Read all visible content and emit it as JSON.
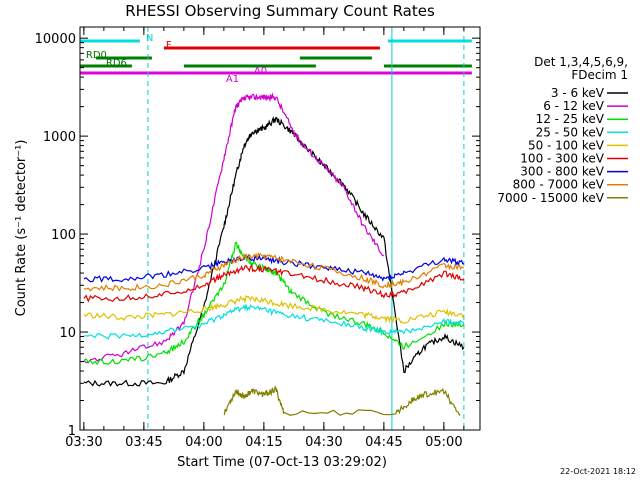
{
  "chart_data": {
    "type": "line",
    "title": "RHESSI Observing Summary Count Rates",
    "xlabel": "Start Time (07-Oct-13 03:29:02)",
    "ylabel": "Count Rate (s⁻¹ detector⁻¹)",
    "y_scale": "log",
    "ylim": [
      1,
      13000
    ],
    "xlim": [
      "03:29:02",
      "05:09:02"
    ],
    "x_unit": "time",
    "x_ticks": [
      "03:30",
      "03:45",
      "04:00",
      "04:15",
      "04:30",
      "04:45",
      "05:00"
    ],
    "y_ticks": [
      "1",
      "10",
      "100",
      "1000",
      "10000"
    ],
    "legend": {
      "placement": "right",
      "header": [
        "Det 1,3,4,5,6,9,",
        "FDecim 1"
      ]
    },
    "series": [
      {
        "name": "3 - 6 keV",
        "color": "#000000",
        "x": [
          "03:30",
          "03:40",
          "03:50",
          "03:55",
          "04:00",
          "04:05",
          "04:08",
          "04:10",
          "04:12",
          "04:15",
          "04:18",
          "04:22",
          "04:25",
          "04:30",
          "04:35",
          "04:40",
          "04:45",
          "04:50",
          "04:55",
          "05:00",
          "05:05"
        ],
        "y": [
          3,
          3,
          3,
          4,
          18,
          120,
          400,
          800,
          1100,
          1200,
          1500,
          1100,
          800,
          500,
          320,
          160,
          90,
          4,
          7,
          9,
          7
        ]
      },
      {
        "name": "6 - 12 keV",
        "color": "#d000d0",
        "x": [
          "03:30",
          "03:40",
          "03:50",
          "03:55",
          "04:00",
          "04:05",
          "04:08",
          "04:10",
          "04:12",
          "04:15",
          "04:18",
          "04:22",
          "04:25",
          "04:30",
          "04:35",
          "04:40",
          "04:45"
        ],
        "y": [
          5,
          6,
          8,
          12,
          70,
          600,
          2000,
          2400,
          2500,
          2500,
          2500,
          1200,
          800,
          500,
          300,
          120,
          60
        ]
      },
      {
        "name": "12 - 25 keV",
        "color": "#00e000",
        "x": [
          "03:30",
          "03:40",
          "03:50",
          "03:55",
          "04:00",
          "04:05",
          "04:08",
          "04:10",
          "04:12",
          "04:15",
          "04:18",
          "04:22",
          "04:30",
          "04:40",
          "04:45",
          "04:50",
          "05:00",
          "05:05"
        ],
        "y": [
          5,
          5,
          6,
          8,
          15,
          30,
          80,
          60,
          50,
          45,
          40,
          25,
          16,
          12,
          10,
          7,
          12,
          12
        ]
      },
      {
        "name": "25 - 50 keV",
        "color": "#00e0e0",
        "x": [
          "03:30",
          "03:40",
          "03:50",
          "04:00",
          "04:05",
          "04:10",
          "04:15",
          "04:20",
          "04:30",
          "04:40",
          "04:45",
          "04:50",
          "05:00",
          "05:05"
        ],
        "y": [
          9,
          9,
          10,
          12,
          15,
          18,
          17,
          15,
          13,
          11,
          10,
          10,
          13,
          12
        ]
      },
      {
        "name": "50 - 100 keV",
        "color": "#e0c000",
        "x": [
          "03:30",
          "03:40",
          "03:50",
          "04:00",
          "04:05",
          "04:10",
          "04:15",
          "04:20",
          "04:30",
          "04:40",
          "04:45",
          "04:50",
          "05:00",
          "05:05"
        ],
        "y": [
          15,
          14,
          15,
          17,
          19,
          22,
          21,
          19,
          17,
          15,
          14,
          13,
          16,
          15
        ]
      },
      {
        "name": "100 - 300 keV",
        "color": "#e00000",
        "x": [
          "03:30",
          "03:40",
          "03:50",
          "04:00",
          "04:05",
          "04:10",
          "04:15",
          "04:20",
          "04:30",
          "04:40",
          "04:45",
          "04:50",
          "05:00",
          "05:05"
        ],
        "y": [
          22,
          22,
          24,
          30,
          38,
          45,
          44,
          40,
          34,
          28,
          24,
          25,
          40,
          35
        ]
      },
      {
        "name": "300 - 800 keV",
        "color": "#0000e0",
        "x": [
          "03:30",
          "03:40",
          "03:50",
          "04:00",
          "04:05",
          "04:10",
          "04:15",
          "04:20",
          "04:30",
          "04:40",
          "04:45",
          "04:50",
          "05:00",
          "05:05"
        ],
        "y": [
          35,
          35,
          38,
          45,
          52,
          58,
          56,
          52,
          46,
          40,
          35,
          40,
          55,
          50
        ]
      },
      {
        "name": "800 - 7000 keV",
        "color": "#e08000",
        "x": [
          "03:30",
          "03:40",
          "03:50",
          "04:00",
          "04:05",
          "04:10",
          "04:15",
          "04:20",
          "04:30",
          "04:40",
          "04:45",
          "04:50",
          "05:00",
          "05:05"
        ],
        "y": [
          28,
          28,
          30,
          38,
          48,
          58,
          60,
          55,
          45,
          35,
          30,
          32,
          48,
          45
        ]
      },
      {
        "name": "7000 - 15000 keV",
        "color": "#808000",
        "x": [
          "04:05",
          "04:08",
          "04:10",
          "04:12",
          "04:15",
          "04:18",
          "04:20",
          "04:48",
          "04:52",
          "04:55",
          "05:00",
          "05:04"
        ],
        "y": [
          1.5,
          2.5,
          2.2,
          2.5,
          2.3,
          2.6,
          1.5,
          1.5,
          2.0,
          2.3,
          2.5,
          1.4
        ]
      }
    ],
    "annotations": [
      {
        "text": "N",
        "x": "03:45",
        "color": "#00d0d0"
      },
      {
        "text": "F",
        "x": "03:50",
        "color": "#e00000"
      },
      {
        "text": "RD0",
        "x": "03:30",
        "color": "#007000"
      },
      {
        "text": "RD6",
        "x": "03:35",
        "color": "#007000"
      },
      {
        "text": "A1",
        "x": "04:05",
        "color": "#d000d0"
      },
      {
        "text": "A0",
        "x": "04:12",
        "color": "#d000d0"
      }
    ],
    "state_bars": [
      {
        "name": "N",
        "color": "#00e0e0",
        "segments": [
          [
            "03:29:02",
            "03:44"
          ],
          [
            "04:46",
            "05:07"
          ]
        ]
      },
      {
        "name": "F",
        "color": "#e00000",
        "segments": [
          [
            "03:50",
            "04:44"
          ]
        ]
      },
      {
        "name": "RD0",
        "color": "#008000",
        "segments": [
          [
            "03:33",
            "03:47"
          ],
          [
            "04:24",
            "04:42"
          ]
        ]
      },
      {
        "name": "RD6",
        "color": "#008000",
        "segments": [
          [
            "03:29:02",
            "03:42"
          ],
          [
            "03:55",
            "04:28"
          ],
          [
            "04:45",
            "05:07"
          ]
        ]
      },
      {
        "name": "attenuator",
        "color": "#e000e0",
        "segments": [
          [
            "03:29:02",
            "05:07"
          ]
        ]
      }
    ],
    "vlines": [
      {
        "x": "03:46",
        "color": "#00d0d0",
        "style": "dashed"
      },
      {
        "x": "04:47",
        "color": "#00d0d0",
        "style": "solid"
      },
      {
        "x": "05:05",
        "color": "#00d0d0",
        "style": "dashed"
      }
    ]
  },
  "footer": {
    "date_stamp": "22-Oct-2021 18:12"
  }
}
